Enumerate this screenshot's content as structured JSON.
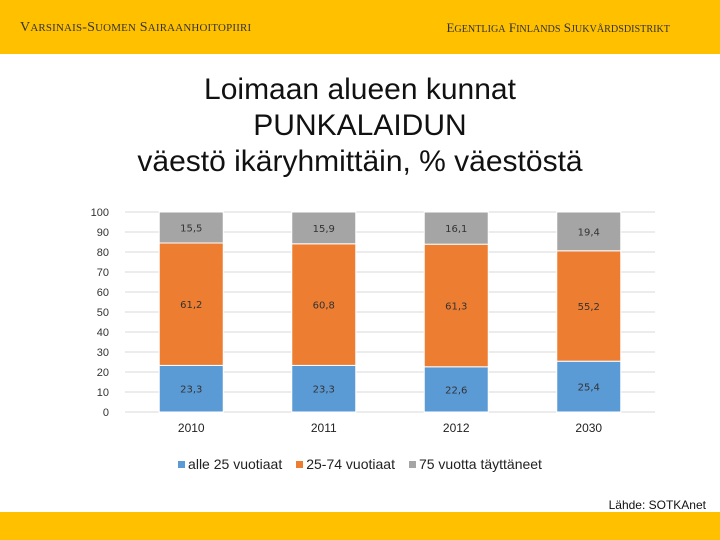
{
  "header": {
    "left": "Varsinais-Suomen sairaanhoitopiiri",
    "right": "Egentliga Finlands sjukvårdsdistrikt",
    "band_color": "#ffc000"
  },
  "title_lines": [
    "Loimaan alueen kunnat",
    "PUNKALAIDUN",
    "väestö ikäryhmittäin, % väestöstä"
  ],
  "source": "Lähde: SOTKAnet",
  "chart_data": {
    "type": "bar",
    "stacked": true,
    "categories": [
      "2010",
      "2011",
      "2012",
      "2030"
    ],
    "ylim": [
      0,
      100
    ],
    "yticks": [
      0,
      10,
      20,
      30,
      40,
      50,
      60,
      70,
      80,
      90,
      100
    ],
    "grid": true,
    "legend_position": "bottom",
    "series": [
      {
        "name": "alle 25 vuotiaat",
        "color": "#5b9bd5",
        "values": [
          23.3,
          23.3,
          22.6,
          25.4
        ],
        "labels": [
          "23,3",
          "23,3",
          "22,6",
          "25,4"
        ]
      },
      {
        "name": "25-74 vuotiaat",
        "color": "#ed7d31",
        "values": [
          61.2,
          60.8,
          61.3,
          55.2
        ],
        "labels": [
          "61,2",
          "60,8",
          "61,3",
          "55,2"
        ]
      },
      {
        "name": "75 vuotta täyttäneet",
        "color": "#a5a5a5",
        "values": [
          15.5,
          15.9,
          16.1,
          19.4
        ],
        "labels": [
          "15,5",
          "15,9",
          "16,1",
          "19,4"
        ]
      }
    ]
  }
}
